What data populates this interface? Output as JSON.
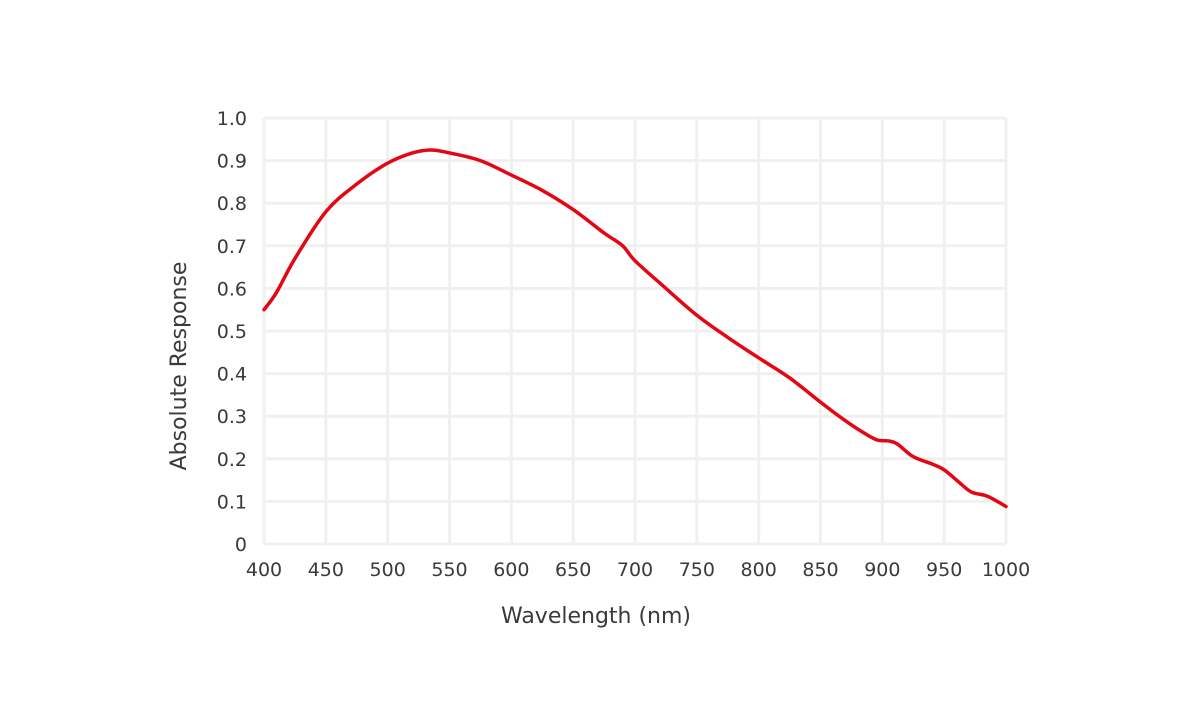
{
  "chart_data": {
    "type": "line",
    "title": "",
    "xlabel": "Wavelength (nm)",
    "ylabel": "Absolute Response",
    "xlim": [
      400,
      1000
    ],
    "ylim": [
      0,
      1.0
    ],
    "x_ticks": [
      400,
      450,
      500,
      550,
      600,
      650,
      700,
      750,
      800,
      850,
      900,
      950,
      1000
    ],
    "x_tick_labels": [
      "400",
      "450",
      "500",
      "550",
      "600",
      "650",
      "700",
      "750",
      "800",
      "850",
      "900",
      "950",
      "1000"
    ],
    "y_ticks": [
      0,
      0.1,
      0.2,
      0.3,
      0.4,
      0.5,
      0.6,
      0.7,
      0.8,
      0.9,
      1.0
    ],
    "y_tick_labels": [
      "0",
      "0.1",
      "0.2",
      "0.3",
      "0.4",
      "0.5",
      "0.6",
      "0.7",
      "0.8",
      "0.9",
      "1.0"
    ],
    "grid": true,
    "legend": "none",
    "colors": {
      "line": "#e30613",
      "grid": "#f0f0f0",
      "text": "#3a3a3a"
    },
    "series": [
      {
        "x": [
          400,
          410,
          425,
          450,
          475,
          500,
          520,
          535,
          550,
          575,
          600,
          625,
          650,
          675,
          690,
          700,
          725,
          750,
          775,
          800,
          825,
          850,
          865,
          880,
          895,
          905,
          912,
          925,
          940,
          950,
          962,
          972,
          985,
          1000
        ],
        "y": [
          0.55,
          0.59,
          0.67,
          0.78,
          0.845,
          0.894,
          0.918,
          0.925,
          0.918,
          0.9,
          0.866,
          0.83,
          0.785,
          0.73,
          0.7,
          0.665,
          0.6,
          0.537,
          0.485,
          0.437,
          0.39,
          0.333,
          0.3,
          0.27,
          0.245,
          0.242,
          0.235,
          0.205,
          0.188,
          0.174,
          0.145,
          0.122,
          0.112,
          0.088
        ]
      }
    ]
  }
}
